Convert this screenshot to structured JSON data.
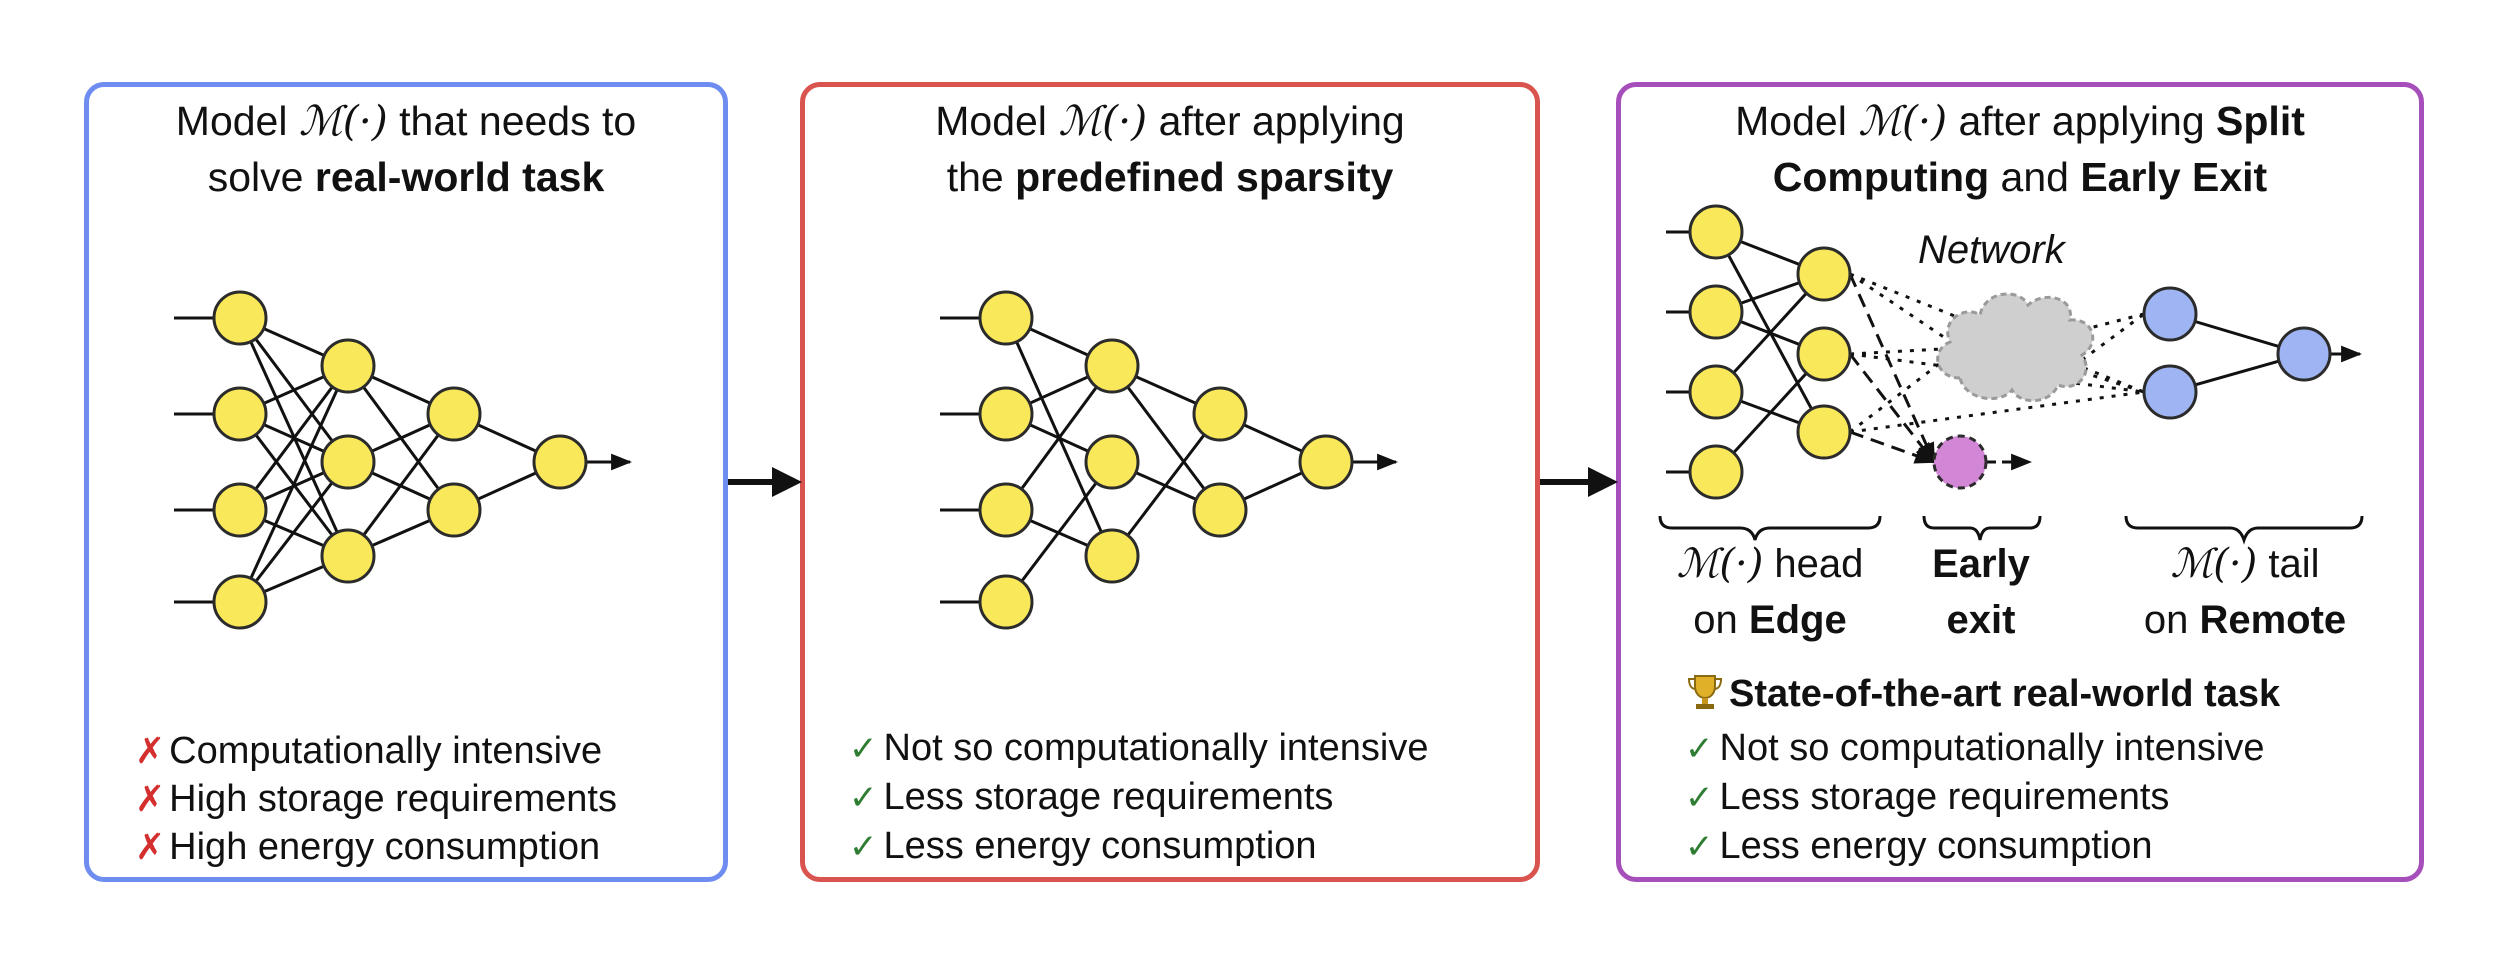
{
  "panels": {
    "left": {
      "title_pre": "Model ",
      "title_mid": " that needs to",
      "title_line2_pre": "solve ",
      "title_bold": "real-world task",
      "model_symbol": "ℳ(·)",
      "items": [
        "Computationally intensive",
        "High storage requirements",
        "High energy consumption"
      ],
      "mark": "✗",
      "mark_color": "#d32f2f",
      "border_color": "#6f8cf0"
    },
    "middle": {
      "title_pre": "Model ",
      "title_mid": " after applying",
      "title_line2_pre": "the ",
      "title_bold": "predefined sparsity",
      "model_symbol": "ℳ(·)",
      "items": [
        "Not so computationally intensive",
        "Less storage requirements",
        "Less energy consumption"
      ],
      "mark": "✓",
      "mark_color": "#2e7d32",
      "border_color": "#d9534f"
    },
    "right": {
      "title_pre": "Model ",
      "title_mid": " after applying ",
      "title_bold1": "Split",
      "title_bold2": "Computing",
      "title_and": " and ",
      "title_bold3": "Early Exit",
      "model_symbol": "ℳ(·)",
      "network_label": "Network",
      "head_label_sym": "ℳ(·)",
      "head_label_rest": " head",
      "head_on": "on ",
      "head_bold": "Edge",
      "early_label_1": "Early",
      "early_label_2": "exit",
      "tail_label_sym": "ℳ(·)",
      "tail_label_rest": " tail",
      "tail_on": "on ",
      "tail_bold": "Remote",
      "trophy_text": "State-of-the-art real-world task",
      "trophy_icon": "trophy-icon",
      "items": [
        "Not so computationally intensive",
        "Less storage requirements",
        "Less energy consumption"
      ],
      "mark": "✓",
      "mark_color": "#2e7d32",
      "border_color": "#a64fba"
    }
  },
  "colors": {
    "neuron_fill": "#f8e85a",
    "neuron_stroke": "#2b2b2b",
    "remote_fill": "#9fb4f2",
    "exit_fill": "#d286d6",
    "cloud_fill": "#cfcfcf"
  }
}
